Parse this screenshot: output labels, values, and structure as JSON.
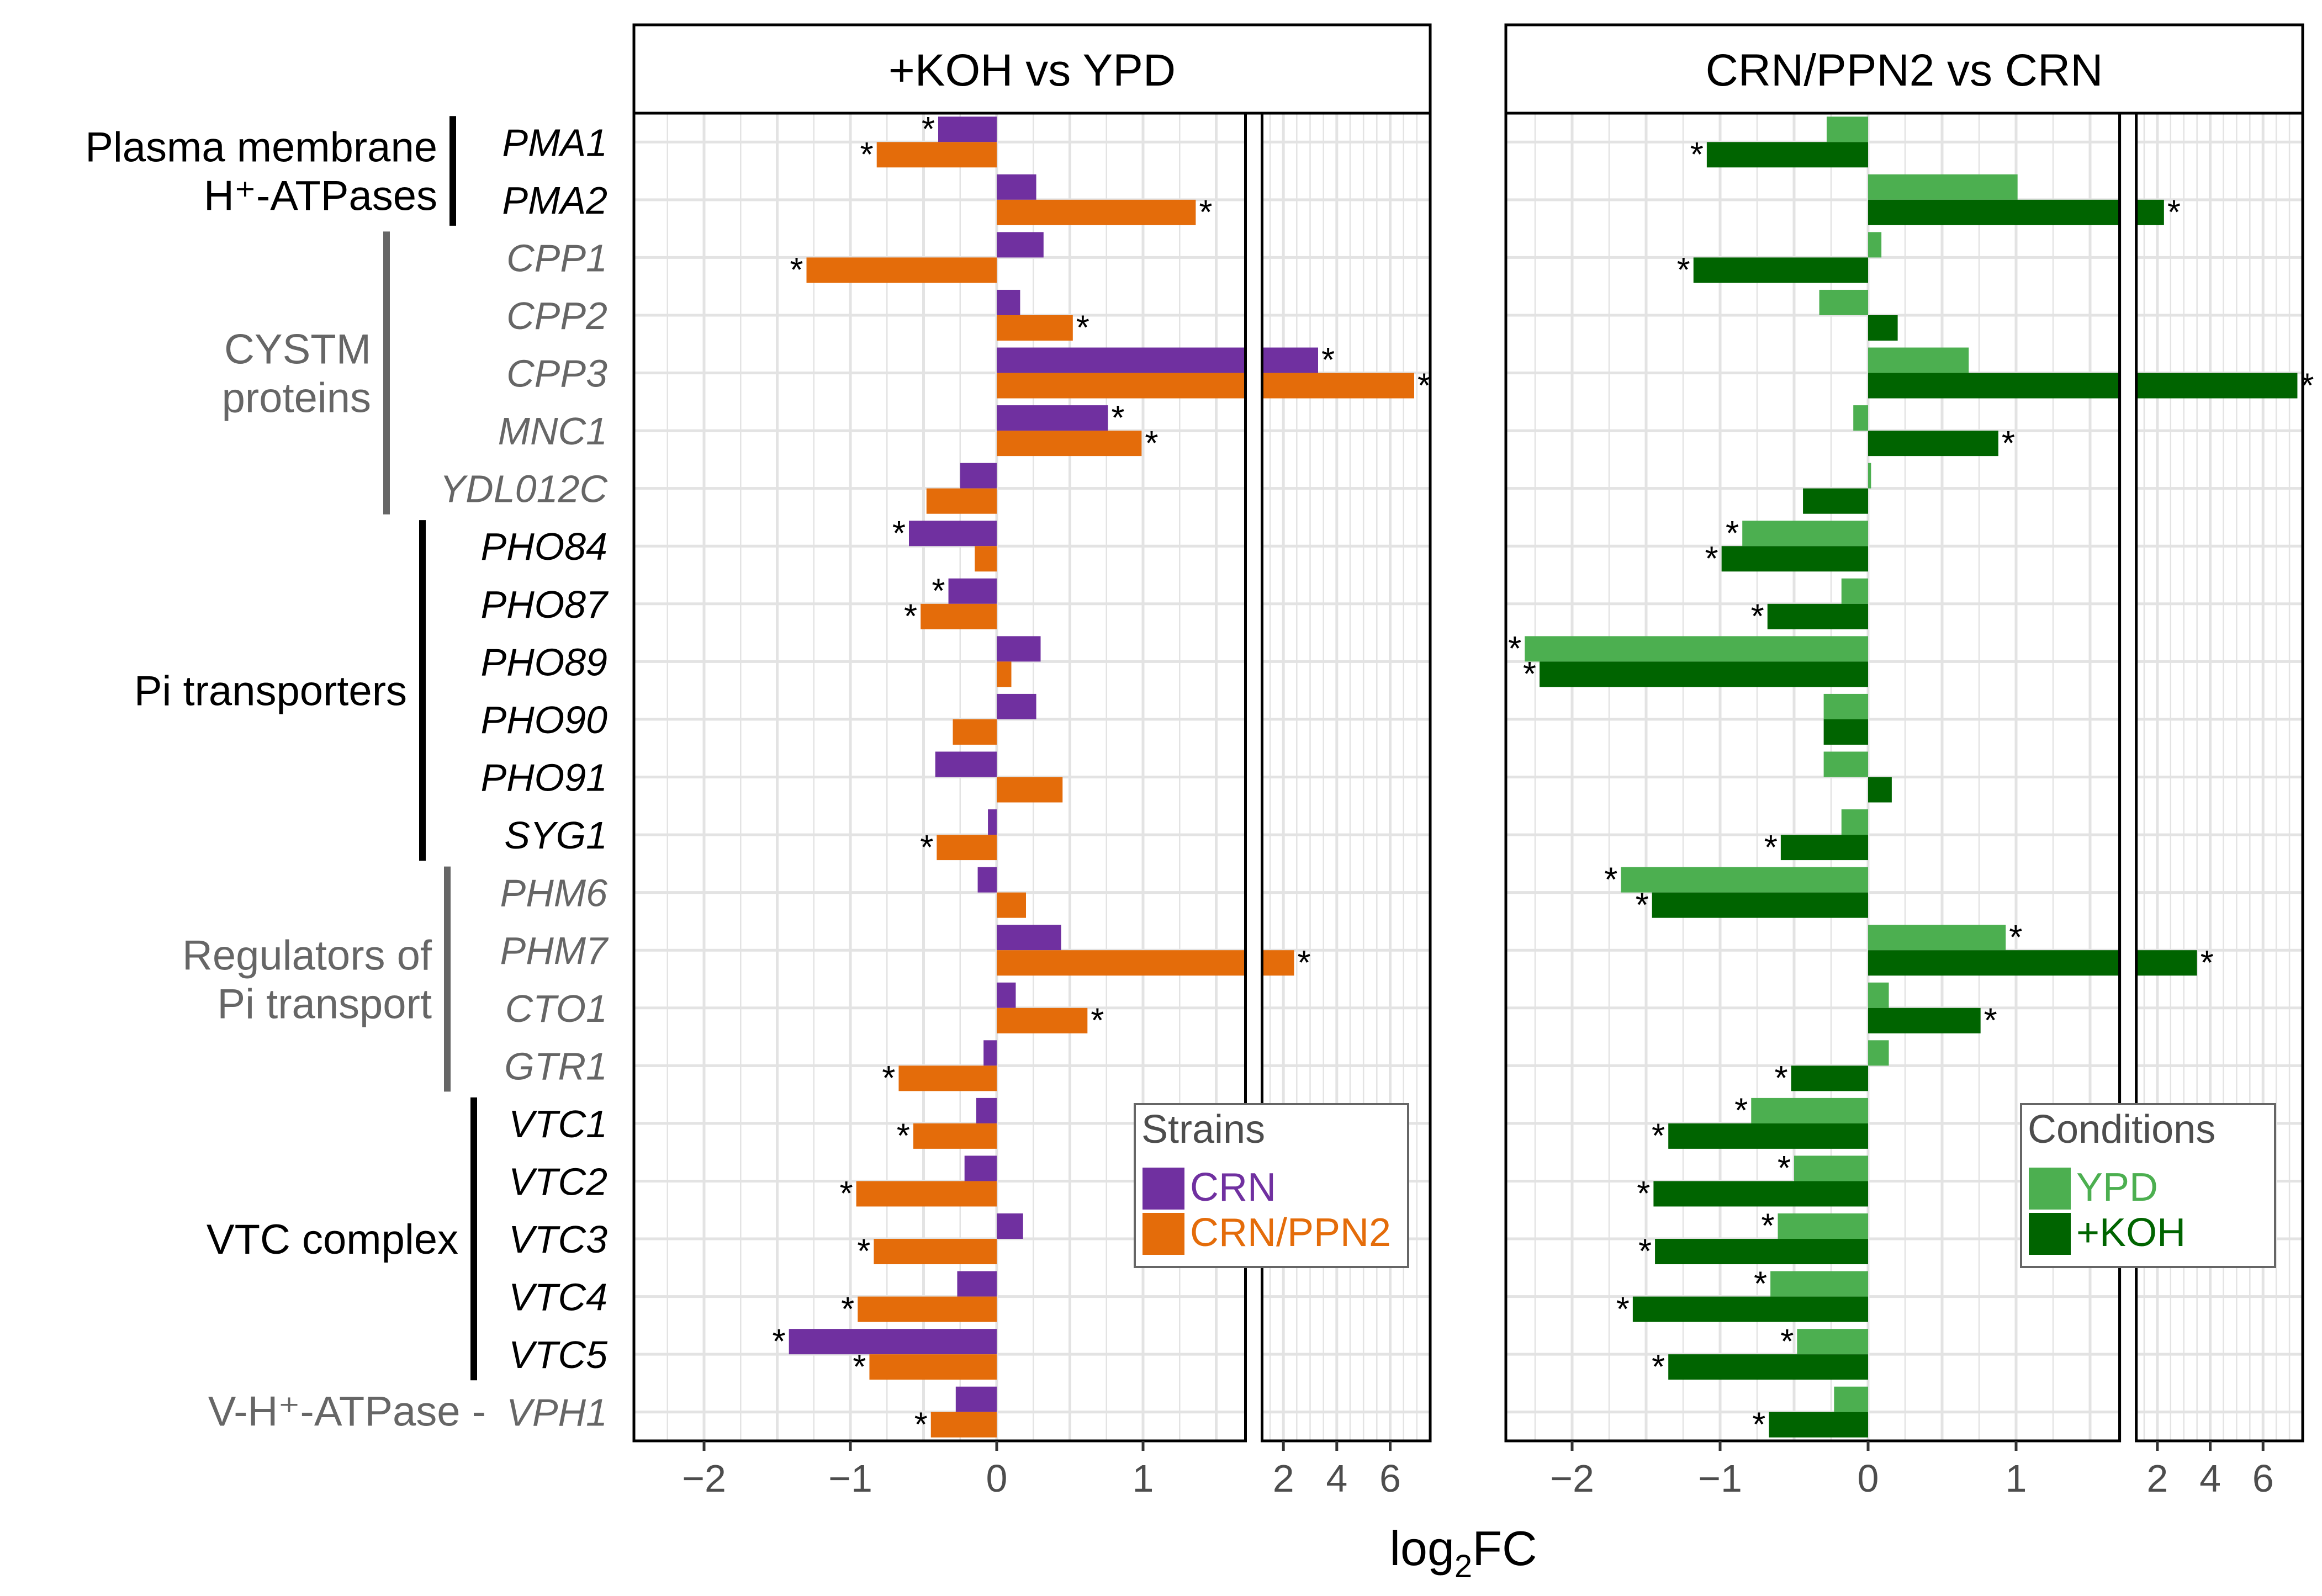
{
  "chart_data": {
    "type": "bar",
    "orientation": "horizontal",
    "xlabel_main": "log",
    "xlabel_sub": "2",
    "xlabel_tail": "FC",
    "xlim_linear": [
      -2.5,
      1.7
    ],
    "xlim_compressed": [
      1.2,
      7.5
    ],
    "x_ticks": [
      "−2",
      "−1",
      "0",
      "1",
      "2",
      "4",
      "6"
    ],
    "genes": [
      {
        "name": "PMA1",
        "color": "#000000"
      },
      {
        "name": "PMA2",
        "color": "#000000"
      },
      {
        "name": "CPP1",
        "color": "#666666"
      },
      {
        "name": "CPP2",
        "color": "#666666"
      },
      {
        "name": "CPP3",
        "color": "#666666"
      },
      {
        "name": "MNC1",
        "color": "#666666"
      },
      {
        "name": "YDL012C",
        "color": "#666666"
      },
      {
        "name": "PHO84",
        "color": "#000000"
      },
      {
        "name": "PHO87",
        "color": "#000000"
      },
      {
        "name": "PHO89",
        "color": "#000000"
      },
      {
        "name": "PHO90",
        "color": "#000000"
      },
      {
        "name": "PHO91",
        "color": "#000000"
      },
      {
        "name": "SYG1",
        "color": "#000000"
      },
      {
        "name": "PHM6",
        "color": "#666666"
      },
      {
        "name": "PHM7",
        "color": "#666666"
      },
      {
        "name": "CTO1",
        "color": "#666666"
      },
      {
        "name": "GTR1",
        "color": "#666666"
      },
      {
        "name": "VTC1",
        "color": "#000000"
      },
      {
        "name": "VTC2",
        "color": "#000000"
      },
      {
        "name": "VTC3",
        "color": "#000000"
      },
      {
        "name": "VTC4",
        "color": "#000000"
      },
      {
        "name": "VTC5",
        "color": "#000000"
      },
      {
        "name": "VPH1",
        "color": "#666666"
      }
    ],
    "groups": [
      {
        "lines": [
          "Plasma membrane",
          "H⁺-ATPases"
        ],
        "first": 0,
        "last": 1,
        "color": "#000000"
      },
      {
        "lines": [
          "CYSTM",
          "proteins"
        ],
        "first": 2,
        "last": 6,
        "color": "#666666"
      },
      {
        "lines": [
          "Pi transporters"
        ],
        "first": 7,
        "last": 12,
        "color": "#000000"
      },
      {
        "lines": [
          "Regulators of",
          "Pi transport"
        ],
        "first": 13,
        "last": 16,
        "color": "#666666"
      },
      {
        "lines": [
          "VTC complex"
        ],
        "first": 17,
        "last": 21,
        "color": "#000000"
      },
      {
        "lines": [
          "V-H⁺-ATPase - "
        ],
        "first": 22,
        "last": 22,
        "color": "#666666",
        "inline": true
      }
    ],
    "panels": [
      {
        "title": "+KOH vs YPD",
        "legend_title": "Strains",
        "series": [
          {
            "name": "CRN",
            "color": "#7030a0",
            "values": [
              -0.4,
              0.27,
              0.32,
              0.16,
              3.3,
              0.76,
              -0.25,
              -0.6,
              -0.33,
              0.3,
              0.27,
              -0.42,
              -0.06,
              -0.13,
              0.44,
              0.13,
              -0.09,
              -0.14,
              -0.22,
              0.18,
              -0.27,
              -1.42,
              -0.28
            ],
            "signif": [
              true,
              false,
              false,
              false,
              true,
              true,
              false,
              true,
              true,
              false,
              false,
              false,
              false,
              false,
              false,
              false,
              false,
              false,
              false,
              false,
              false,
              true,
              false
            ]
          },
          {
            "name": "CRN/PPN2",
            "color": "#e46c0a",
            "values": [
              -0.82,
              1.36,
              -1.3,
              0.52,
              6.9,
              0.99,
              -0.48,
              -0.15,
              -0.52,
              0.1,
              -0.3,
              0.45,
              -0.41,
              0.2,
              2.4,
              0.62,
              -0.67,
              -0.57,
              -0.96,
              -0.84,
              -0.95,
              -0.87,
              -0.45
            ],
            "signif": [
              true,
              true,
              true,
              true,
              true,
              true,
              false,
              false,
              true,
              false,
              false,
              false,
              true,
              false,
              true,
              true,
              true,
              true,
              true,
              true,
              true,
              true,
              true
            ]
          }
        ]
      },
      {
        "title": "CRN/PPN2 vs CRN",
        "legend_title": "Conditions",
        "series": [
          {
            "name": "YPD",
            "color": "#4caf50",
            "values": [
              -0.28,
              1.01,
              0.09,
              -0.33,
              0.68,
              -0.1,
              0.02,
              -0.85,
              -0.18,
              -2.32,
              -0.3,
              -0.3,
              -0.18,
              -1.67,
              0.93,
              0.14,
              0.14,
              -0.79,
              -0.5,
              -0.61,
              -0.66,
              -0.48,
              -0.23
            ],
            "signif": [
              false,
              false,
              false,
              false,
              false,
              false,
              false,
              true,
              false,
              true,
              false,
              false,
              false,
              true,
              true,
              false,
              false,
              true,
              true,
              true,
              true,
              true,
              false
            ]
          },
          {
            "name": "+KOH",
            "color": "#006400",
            "values": [
              -1.09,
              2.25,
              -1.18,
              0.2,
              7.3,
              0.88,
              -0.44,
              -0.99,
              -0.68,
              -2.22,
              -0.3,
              0.16,
              -0.59,
              -1.46,
              3.5,
              0.76,
              -0.52,
              -1.35,
              -1.45,
              -1.44,
              -1.59,
              -1.35,
              -0.67
            ],
            "signif": [
              true,
              true,
              true,
              false,
              true,
              true,
              false,
              true,
              true,
              true,
              false,
              false,
              true,
              true,
              true,
              true,
              true,
              true,
              true,
              true,
              true,
              true,
              true
            ]
          }
        ]
      }
    ]
  }
}
